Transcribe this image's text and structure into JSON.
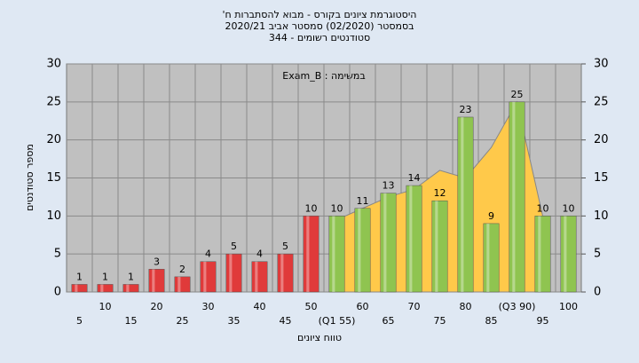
{
  "chart_data": {
    "type": "bar",
    "title": [
      "היסטוגרמת ציונים בקורס - מבוא להסתברות ח'",
      "בסמסטר (02/2020) סמסטר אביב 2020/21",
      "סטודנטים רשומים - 344"
    ],
    "annotation": "במשימה : Exam_B",
    "y_label": "מספר סטודנטים",
    "x_label": "טווח ציונים",
    "categories": [
      "5",
      "10",
      "15",
      "20",
      "25",
      "30",
      "35",
      "40",
      "45",
      "50",
      "(Q1 55)",
      "60",
      "65",
      "70",
      "75",
      "80",
      "85",
      "(Q3 90)",
      "95",
      "100"
    ],
    "values": [
      1,
      1,
      1,
      3,
      2,
      4,
      5,
      4,
      5,
      10,
      10,
      11,
      13,
      14,
      12,
      23,
      9,
      25,
      10,
      10
    ],
    "colors": [
      "#e03a3a",
      "#e03a3a",
      "#e03a3a",
      "#e03a3a",
      "#e03a3a",
      "#e03a3a",
      "#e03a3a",
      "#e03a3a",
      "#e03a3a",
      "#e03a3a",
      "#8fc450",
      "#8fc450",
      "#8fc450",
      "#8fc450",
      "#8fc450",
      "#8fc450",
      "#8fc450",
      "#8fc450",
      "#8fc450",
      "#8fc450"
    ],
    "area_values": [
      null,
      null,
      null,
      null,
      null,
      null,
      null,
      null,
      null,
      null,
      9.5,
      11,
      12.5,
      13.5,
      16,
      15,
      19,
      25,
      10,
      null
    ],
    "area_color": "#ffc94a",
    "ylim": [
      0,
      30
    ],
    "yticks": [
      0,
      5,
      10,
      15,
      20,
      25,
      30
    ],
    "y2lim": [
      0,
      30
    ],
    "y2ticks": [
      0,
      5,
      10,
      15,
      20,
      25,
      30
    ],
    "grid": true
  }
}
